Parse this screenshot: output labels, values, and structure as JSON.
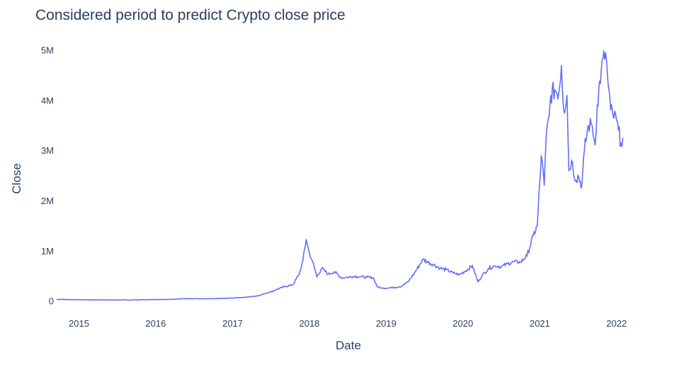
{
  "chart_data": {
    "type": "line",
    "title": "Considered period to predict Crypto close price",
    "xlabel": "Date",
    "ylabel": "Close",
    "x_range": [
      "2014-09-17",
      "2022-09-01"
    ],
    "ylim": [
      -260000,
      5150000
    ],
    "x_ticks": [
      {
        "date": "2015-01-01",
        "label": "2015"
      },
      {
        "date": "2016-01-01",
        "label": "2016"
      },
      {
        "date": "2017-01-01",
        "label": "2017"
      },
      {
        "date": "2018-01-01",
        "label": "2018"
      },
      {
        "date": "2019-01-01",
        "label": "2019"
      },
      {
        "date": "2020-01-01",
        "label": "2020"
      },
      {
        "date": "2021-01-01",
        "label": "2021"
      },
      {
        "date": "2022-01-01",
        "label": "2022"
      }
    ],
    "y_ticks": [
      {
        "value": 0,
        "label": "0"
      },
      {
        "value": 1000000,
        "label": "1M"
      },
      {
        "value": 2000000,
        "label": "2M"
      },
      {
        "value": 3000000,
        "label": "3M"
      },
      {
        "value": 4000000,
        "label": "4M"
      },
      {
        "value": 5000000,
        "label": "5M"
      }
    ],
    "grid": false,
    "line_color": "#636efa",
    "series": [
      {
        "x": [
          "2014-09-17",
          "2014-12-01",
          "2015-03-01",
          "2015-06-01",
          "2015-09-01",
          "2015-12-01",
          "2016-03-01",
          "2016-06-01",
          "2016-09-01",
          "2016-12-01",
          "2017-03-01",
          "2017-05-01",
          "2017-07-01",
          "2017-09-01",
          "2017-10-15",
          "2017-11-15",
          "2017-12-01",
          "2017-12-17",
          "2018-01-01",
          "2018-01-15",
          "2018-02-06",
          "2018-03-01",
          "2018-04-01",
          "2018-05-01",
          "2018-06-01",
          "2018-07-01",
          "2018-08-01",
          "2018-09-01",
          "2018-10-01",
          "2018-11-01",
          "2018-11-20",
          "2018-12-15",
          "2019-01-15",
          "2019-02-15",
          "2019-03-15",
          "2019-04-15",
          "2019-05-15",
          "2019-06-26",
          "2019-07-15",
          "2019-08-15",
          "2019-09-15",
          "2019-10-15",
          "2019-11-15",
          "2019-12-15",
          "2020-01-15",
          "2020-02-15",
          "2020-03-13",
          "2020-04-01",
          "2020-05-01",
          "2020-06-01",
          "2020-07-01",
          "2020-08-01",
          "2020-09-01",
          "2020-10-01",
          "2020-11-01",
          "2020-12-01",
          "2020-12-20",
          "2021-01-08",
          "2021-01-22",
          "2021-02-01",
          "2021-02-15",
          "2021-02-22",
          "2021-03-13",
          "2021-04-01",
          "2021-04-14",
          "2021-04-25",
          "2021-05-10",
          "2021-05-19",
          "2021-06-01",
          "2021-06-22",
          "2021-07-01",
          "2021-07-20",
          "2021-08-01",
          "2021-08-20",
          "2021-09-07",
          "2021-09-21",
          "2021-10-01",
          "2021-10-20",
          "2021-11-10",
          "2021-11-20",
          "2021-12-04",
          "2021-12-15",
          "2022-01-01",
          "2022-01-10",
          "2022-01-22",
          "2022-01-31"
        ],
        "y": [
          30000,
          25000,
          20000,
          18000,
          17000,
          25000,
          30000,
          45000,
          40000,
          50000,
          70000,
          100000,
          180000,
          280000,
          320000,
          550000,
          800000,
          1230000,
          950000,
          800000,
          480000,
          650000,
          530000,
          580000,
          460000,
          470000,
          490000,
          480000,
          470000,
          460000,
          280000,
          250000,
          260000,
          270000,
          290000,
          380000,
          550000,
          830000,
          780000,
          720000,
          650000,
          620000,
          560000,
          520000,
          600000,
          700000,
          380000,
          500000,
          640000,
          700000,
          680000,
          740000,
          780000,
          770000,
          900000,
          1300000,
          1500000,
          2900000,
          2300000,
          3300000,
          3700000,
          4100000,
          4200000,
          4150000,
          4700000,
          3800000,
          4100000,
          2600000,
          2800000,
          2400000,
          2500000,
          2300000,
          3000000,
          3500000,
          3500000,
          3100000,
          3900000,
          4600000,
          4950000,
          4400000,
          3800000,
          3700000,
          3600000,
          3400000,
          3150000,
          3250000
        ]
      }
    ]
  }
}
